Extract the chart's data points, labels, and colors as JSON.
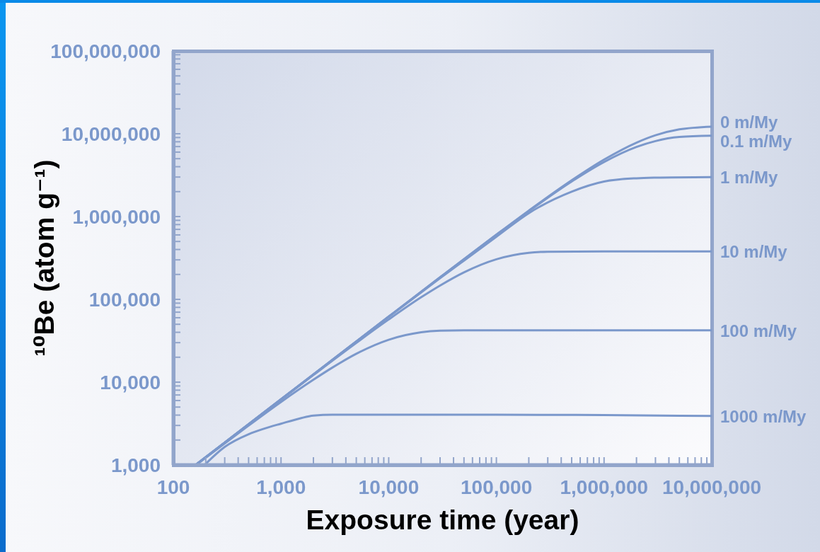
{
  "chart_data": {
    "type": "line",
    "xlabel": "Exposure time (year)",
    "ylabel": "¹⁰Be (atom g⁻¹)",
    "log": "xy",
    "xlim": [
      100,
      10000000
    ],
    "ylim": [
      1000,
      100000000
    ],
    "xticks": [
      100,
      {
        "value": 200,
        "label": null
      },
      {
        "value": 300,
        "label": null
      },
      {
        "value": 400,
        "label": null
      },
      {
        "value": 500,
        "label": null
      },
      {
        "value": 600,
        "label": null
      },
      {
        "value": 700,
        "label": null
      },
      {
        "value": 800,
        "label": null
      },
      {
        "value": 900,
        "label": null
      },
      {
        "value": 1000,
        "label": "1,000"
      },
      {
        "value": 2000,
        "label": null
      },
      {
        "value": 3000,
        "label": null
      },
      {
        "value": 4000,
        "label": null
      },
      {
        "value": 5000,
        "label": null
      },
      {
        "value": 6000,
        "label": null
      },
      {
        "value": 7000,
        "label": null
      },
      {
        "value": 8000,
        "label": null
      },
      {
        "value": 9000,
        "label": null
      },
      {
        "value": 10000,
        "label": "10,000"
      },
      {
        "value": 20000,
        "label": null
      },
      {
        "value": 30000,
        "label": null
      },
      {
        "value": 40000,
        "label": null
      },
      {
        "value": 50000,
        "label": null
      },
      {
        "value": 60000,
        "label": null
      },
      {
        "value": 70000,
        "label": null
      },
      {
        "value": 80000,
        "label": null
      },
      {
        "value": 90000,
        "label": null
      },
      {
        "value": 100000,
        "label": "100,000"
      },
      {
        "value": 200000,
        "label": null
      },
      {
        "value": 300000,
        "label": null
      },
      {
        "value": 400000,
        "label": null
      },
      {
        "value": 500000,
        "label": null
      },
      {
        "value": 600000,
        "label": null
      },
      {
        "value": 700000,
        "label": null
      },
      {
        "value": 800000,
        "label": null
      },
      {
        "value": 900000,
        "label": null
      },
      {
        "value": 1000000,
        "label": "1,000,000"
      },
      {
        "value": 2000000,
        "label": null
      },
      {
        "value": 3000000,
        "label": null
      },
      {
        "value": 4000000,
        "label": null
      },
      {
        "value": 5000000,
        "label": null
      },
      {
        "value": 6000000,
        "label": null
      },
      {
        "value": 7000000,
        "label": null
      },
      {
        "value": 8000000,
        "label": null
      },
      {
        "value": 9000000,
        "label": null
      },
      {
        "value": 10000000,
        "label": "10,000,000"
      }
    ],
    "yticks": [
      {
        "value": 1000,
        "label": "1,000"
      },
      {
        "value": 2000,
        "label": null
      },
      {
        "value": 3000,
        "label": null
      },
      {
        "value": 4000,
        "label": null
      },
      {
        "value": 5000,
        "label": null
      },
      {
        "value": 6000,
        "label": null
      },
      {
        "value": 7000,
        "label": null
      },
      {
        "value": 8000,
        "label": null
      },
      {
        "value": 9000,
        "label": null
      },
      {
        "value": 10000,
        "label": "10,000"
      },
      {
        "value": 20000,
        "label": null
      },
      {
        "value": 30000,
        "label": null
      },
      {
        "value": 40000,
        "label": null
      },
      {
        "value": 50000,
        "label": null
      },
      {
        "value": 60000,
        "label": null
      },
      {
        "value": 70000,
        "label": null
      },
      {
        "value": 80000,
        "label": null
      },
      {
        "value": 90000,
        "label": null
      },
      {
        "value": 100000,
        "label": "100,000"
      },
      {
        "value": 200000,
        "label": null
      },
      {
        "value": 300000,
        "label": null
      },
      {
        "value": 400000,
        "label": null
      },
      {
        "value": 500000,
        "label": null
      },
      {
        "value": 600000,
        "label": null
      },
      {
        "value": 700000,
        "label": null
      },
      {
        "value": 800000,
        "label": null
      },
      {
        "value": 900000,
        "label": null
      },
      {
        "value": 1000000,
        "label": "1,000,000"
      },
      {
        "value": 2000000,
        "label": null
      },
      {
        "value": 3000000,
        "label": null
      },
      {
        "value": 4000000,
        "label": null
      },
      {
        "value": 5000000,
        "label": null
      },
      {
        "value": 6000000,
        "label": null
      },
      {
        "value": 7000000,
        "label": null
      },
      {
        "value": 8000000,
        "label": null
      },
      {
        "value": 9000000,
        "label": null
      },
      {
        "value": 10000000,
        "label": "10,000,000"
      },
      {
        "value": 20000000,
        "label": null
      },
      {
        "value": 30000000,
        "label": null
      },
      {
        "value": 40000000,
        "label": null
      },
      {
        "value": 50000000,
        "label": null
      },
      {
        "value": 60000000,
        "label": null
      },
      {
        "value": 70000000,
        "label": null
      },
      {
        "value": 80000000,
        "label": null
      },
      {
        "value": 90000000,
        "label": null
      },
      {
        "value": 100000000,
        "label": "100,000,000"
      }
    ],
    "series": [
      {
        "name": "0 m/My",
        "color": "#7b98cb",
        "x": [
          161,
          300,
          1000,
          3000,
          10000,
          30000,
          100000,
          200000,
          500000,
          1000000,
          2000000,
          3000000,
          5000000,
          10000000
        ],
        "values": [
          1000,
          1860,
          6200,
          18600,
          62000,
          185000,
          605000,
          1180000,
          2740000,
          4870000,
          7810000,
          9590000,
          11300000,
          12200000
        ]
      },
      {
        "name": "0.1 m/My",
        "color": "#7b98cb",
        "x": [
          161,
          300,
          1000,
          3000,
          10000,
          30000,
          100000,
          200000,
          500000,
          1000000,
          2000000,
          3000000,
          5000000,
          10000000
        ],
        "values": [
          1000,
          1860,
          6200,
          18600,
          61800,
          184000,
          600000,
          1160000,
          2650000,
          4560000,
          6930000,
          8160000,
          9140000,
          9490000
        ]
      },
      {
        "name": "1 m/My",
        "color": "#7b98cb",
        "x": [
          161,
          300,
          1000,
          3000,
          10000,
          30000,
          50000,
          100000,
          200000,
          500000,
          1000000,
          2000000,
          3000000,
          10000000
        ],
        "values": [
          1000,
          1860,
          6200,
          18500,
          61400,
          180000,
          294000,
          570000,
          1100000,
          2000000,
          2650000,
          2900000,
          2950000,
          3000000
        ]
      },
      {
        "name": "10 m/My",
        "color": "#7b98cb",
        "x": [
          161,
          300,
          1000,
          2000,
          5000,
          10000,
          20000,
          30000,
          50000,
          100000,
          200000,
          300000,
          1000000,
          10000000
        ],
        "values": [
          1000,
          1860,
          6150,
          12200,
          29800,
          57200,
          106000,
          147000,
          212000,
          305000,
          365000,
          376000,
          379000,
          379000
        ]
      },
      {
        "name": "100 m/My",
        "color": "#7b98cb",
        "x": [
          163,
          300,
          500,
          1000,
          2000,
          3000,
          5000,
          10000,
          20000,
          30000,
          50000,
          1000000,
          10000000
        ],
        "values": [
          1000,
          1820,
          2990,
          5770,
          10700,
          15000,
          22000,
          32500,
          40000,
          41800,
          42300,
          42300,
          42300
        ]
      },
      {
        "name": "1000 m/My",
        "color": "#7b98cb",
        "x": [
          195,
          300,
          500,
          700,
          1000,
          1500,
          2000,
          3000,
          10000,
          100000,
          1000000,
          10000000
        ],
        "values": [
          1000,
          1650,
          2350,
          2750,
          3150,
          3650,
          3950,
          4050,
          4050,
          4050,
          4000,
          3900
        ]
      }
    ]
  }
}
